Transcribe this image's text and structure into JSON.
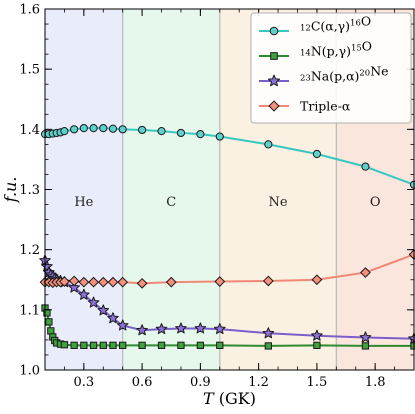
{
  "chart_data": {
    "type": "line",
    "xlabel": "T (GK)",
    "ylabel": "f.u.",
    "xlim": [
      0.1,
      2.0
    ],
    "ylim": [
      1.0,
      1.6
    ],
    "xticks": [
      "0.3",
      "0.6",
      "0.9",
      "1.2",
      "1.5",
      "1.8"
    ],
    "yticks": [
      "1.0",
      "1.1",
      "1.2",
      "1.3",
      "1.4",
      "1.5",
      "1.6"
    ],
    "xtick_values": [
      0.3,
      0.6,
      0.9,
      1.2,
      1.5,
      1.8
    ],
    "ytick_values": [
      1.0,
      1.1,
      1.2,
      1.3,
      1.4,
      1.5,
      1.6
    ],
    "grid": false,
    "legend_position": "top-right",
    "regions": [
      {
        "label": "He",
        "x0": 0.1,
        "x1": 0.5,
        "color": "#e8ecfb"
      },
      {
        "label": "C",
        "x0": 0.5,
        "x1": 1.0,
        "color": "#e6f8ec"
      },
      {
        "label": "Ne",
        "x0": 1.0,
        "x1": 1.6,
        "color": "#fbf1e3"
      },
      {
        "label": "O",
        "x0": 1.6,
        "x1": 2.0,
        "color": "#fbe6de"
      }
    ],
    "series": [
      {
        "name": "12C(α,γ)16O",
        "legend": {
          "pre": "12",
          "main": "C(α,γ)",
          "post": "16",
          "end": "O"
        },
        "color": "#38c6c0",
        "marker": "circle",
        "marker_fill": "#5fd0cc",
        "x": [
          0.1,
          0.12,
          0.14,
          0.16,
          0.18,
          0.2,
          0.25,
          0.3,
          0.35,
          0.4,
          0.45,
          0.5,
          0.6,
          0.7,
          0.8,
          0.9,
          1.0,
          1.25,
          1.5,
          1.75,
          2.0
        ],
        "y": [
          1.392,
          1.392,
          1.393,
          1.394,
          1.395,
          1.397,
          1.4,
          1.402,
          1.402,
          1.402,
          1.401,
          1.4,
          1.399,
          1.397,
          1.394,
          1.392,
          1.388,
          1.375,
          1.359,
          1.338,
          1.308
        ]
      },
      {
        "name": "14N(p,γ)15O",
        "legend": {
          "pre": "14",
          "main": "N(p,γ)",
          "post": "15",
          "end": "O"
        },
        "color": "#2f8a2f",
        "marker": "square",
        "marker_fill": "#3fa03f",
        "x": [
          0.1,
          0.11,
          0.12,
          0.13,
          0.14,
          0.15,
          0.16,
          0.18,
          0.2,
          0.25,
          0.3,
          0.35,
          0.4,
          0.45,
          0.5,
          0.6,
          0.7,
          0.8,
          0.9,
          1.0,
          1.25,
          1.5,
          1.75,
          2.0
        ],
        "y": [
          1.103,
          1.095,
          1.08,
          1.065,
          1.055,
          1.049,
          1.045,
          1.043,
          1.042,
          1.041,
          1.041,
          1.041,
          1.041,
          1.041,
          1.041,
          1.041,
          1.041,
          1.041,
          1.041,
          1.041,
          1.04,
          1.041,
          1.04,
          1.04
        ]
      },
      {
        "name": "23Na(p,α)20Ne",
        "legend": {
          "pre": "23",
          "main": "Na(p,α)",
          "post": "20",
          "end": "Ne"
        },
        "color": "#7b5fc8",
        "marker": "star",
        "marker_fill": "#8d72d6",
        "x": [
          0.1,
          0.11,
          0.12,
          0.13,
          0.14,
          0.15,
          0.16,
          0.18,
          0.2,
          0.25,
          0.3,
          0.35,
          0.4,
          0.45,
          0.5,
          0.6,
          0.7,
          0.8,
          0.9,
          1.0,
          1.25,
          1.5,
          1.75,
          2.0
        ],
        "y": [
          1.182,
          1.172,
          1.162,
          1.158,
          1.155,
          1.152,
          1.15,
          1.148,
          1.146,
          1.137,
          1.125,
          1.112,
          1.099,
          1.086,
          1.074,
          1.066,
          1.068,
          1.069,
          1.069,
          1.068,
          1.061,
          1.057,
          1.054,
          1.052
        ]
      },
      {
        "name": "Triple-α",
        "legend": {
          "pre": "",
          "main": "Triple-α",
          "post": "",
          "end": ""
        },
        "color": "#f08878",
        "marker": "diamond",
        "marker_fill": "#f4907c",
        "x": [
          0.1,
          0.12,
          0.14,
          0.16,
          0.18,
          0.2,
          0.25,
          0.3,
          0.35,
          0.4,
          0.45,
          0.5,
          0.6,
          0.75,
          1.0,
          1.25,
          1.5,
          1.75,
          2.0
        ],
        "y": [
          1.146,
          1.146,
          1.145,
          1.146,
          1.146,
          1.147,
          1.148,
          1.146,
          1.146,
          1.146,
          1.146,
          1.146,
          1.144,
          1.146,
          1.147,
          1.148,
          1.15,
          1.162,
          1.192
        ]
      }
    ]
  }
}
